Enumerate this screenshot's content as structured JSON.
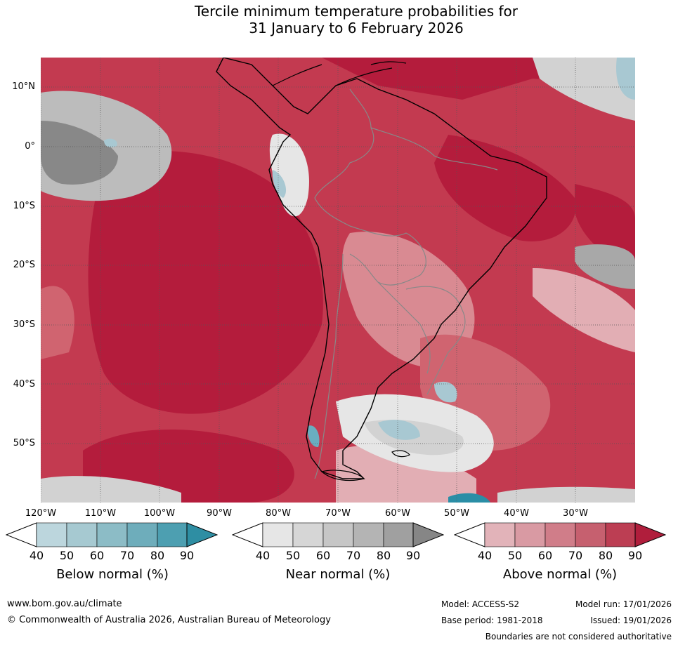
{
  "title": {
    "line1": "Tercile minimum temperature probabilities for",
    "line2": "31 January to 6 February 2026"
  },
  "map": {
    "lat_labels": [
      "10°N",
      "0°",
      "10°S",
      "20°S",
      "30°S",
      "40°S",
      "50°S"
    ],
    "lon_labels": [
      "120°W",
      "110°W",
      "100°W",
      "90°W",
      "80°W",
      "70°W",
      "60°W",
      "50°W",
      "40°W",
      "30°W"
    ],
    "colors": {
      "above_90": "#b41c3c",
      "above_80": "#c33a50",
      "above_70": "#d06470",
      "above_60": "#d98a92",
      "above_50": "#e2aeb4",
      "near_40": "#e6e6e6",
      "near_50": "#d2d2d2",
      "near_60": "#bcbcbc",
      "near_70": "#a8a8a8",
      "near_80": "#888888",
      "below_50": "#a8c8d2",
      "below_70": "#6aaec0",
      "below_90": "#2a8ea6",
      "coast": "#000000",
      "border": "#888888"
    }
  },
  "colorbars": [
    {
      "label": "Below normal (%)",
      "ticks": [
        "40",
        "50",
        "60",
        "70",
        "80",
        "90"
      ],
      "colors": [
        "#bcd6dd",
        "#a6c9d1",
        "#8cbcc6",
        "#6eadbb",
        "#4d9fb1",
        "#2e8ea3"
      ]
    },
    {
      "label": "Near normal (%)",
      "ticks": [
        "40",
        "50",
        "60",
        "70",
        "80",
        "90"
      ],
      "colors": [
        "#e6e6e6",
        "#d6d6d6",
        "#c6c6c6",
        "#b4b4b4",
        "#a0a0a0",
        "#868686"
      ]
    },
    {
      "label": "Above normal (%)",
      "ticks": [
        "40",
        "50",
        "60",
        "70",
        "80",
        "90"
      ],
      "colors": [
        "#e2b3b9",
        "#d99aa3",
        "#d07d89",
        "#c6606f",
        "#bc3e53",
        "#b01e3c"
      ]
    }
  ],
  "footer": {
    "website": "www.bom.gov.au/climate",
    "copyright": "© Commonwealth of Australia 2026, Australian Bureau of Meteorology",
    "model": "Model: ACCESS-S2",
    "base_period": "Base period: 1981-2018",
    "model_run": "Model run: 17/01/2026",
    "issued": "Issued: 19/01/2026",
    "disclaimer": "Boundaries are not considered authoritative"
  }
}
